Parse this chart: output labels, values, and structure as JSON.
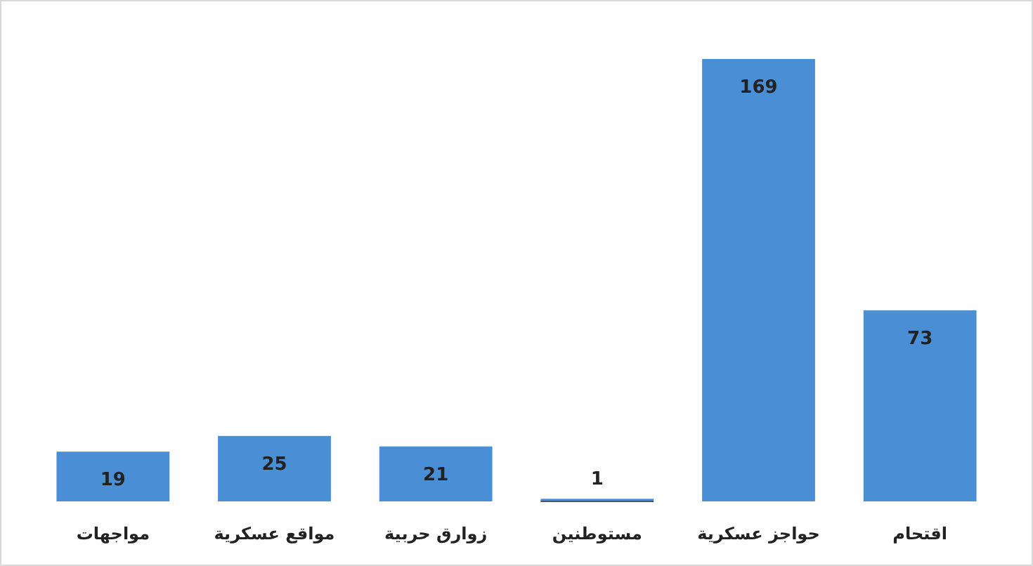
{
  "chart_data": {
    "type": "bar",
    "categories": [
      "مواجهات",
      "مواقع عسكرية",
      "زوارق حربية",
      "مستوطنين",
      "حواجز عسكرية",
      "اقتحام"
    ],
    "values": [
      19,
      25,
      21,
      1,
      169,
      73
    ],
    "color": "#4a8fd6",
    "data_labels": true
  }
}
